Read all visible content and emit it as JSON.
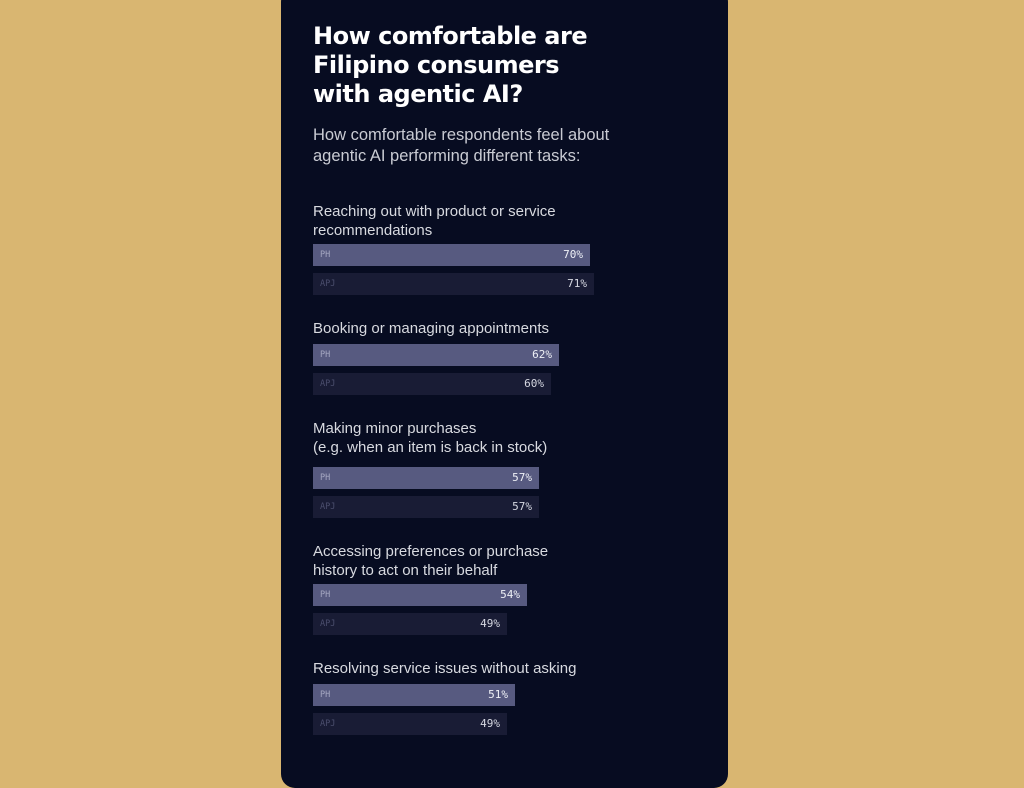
{
  "colors": {
    "background": "#d9b671",
    "card": "#070c21",
    "bar_ph": "#575a80",
    "bar_apj": "#191c35",
    "label_ph": "#a6a8c2",
    "label_apj": "#4c4f6e",
    "value_ph": "#eef0f6",
    "value_apj": "#d6d8e2"
  },
  "header": {
    "title": "How comfortable are Filipino consumers with agentic AI?",
    "subtitle": "How comfortable respondents feel about agentic AI performing different tasks:"
  },
  "chart_data": {
    "type": "bar",
    "orientation": "horizontal",
    "title": "How comfortable are Filipino consumers with agentic AI?",
    "subtitle": "How comfortable respondents feel about agentic AI performing different tasks:",
    "xlabel": "",
    "ylabel": "",
    "xlim": [
      0,
      100
    ],
    "unit": "%",
    "grid": false,
    "legend": "inline",
    "categories": [
      "Reaching out with product or service\nrecommendations",
      "Booking or managing appointments",
      "Making minor purchases\n(e.g. when an item is back in stock)",
      "Accessing preferences or purchase\nhistory to act on their behalf",
      "Resolving service issues without asking"
    ],
    "series": [
      {
        "name": "PH",
        "values": [
          70,
          62,
          57,
          54,
          51
        ]
      },
      {
        "name": "APJ",
        "values": [
          71,
          60,
          57,
          49,
          49
        ]
      }
    ]
  }
}
